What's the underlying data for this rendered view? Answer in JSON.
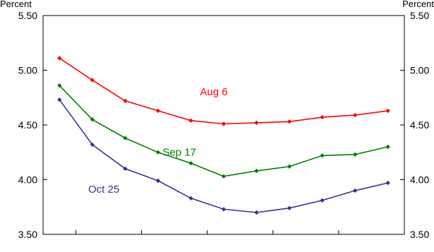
{
  "chart_data": {
    "type": "line",
    "y_unit_left": "Percent",
    "y_unit_right": "Percent",
    "ylim": [
      3.5,
      5.5
    ],
    "y_ticks": [
      "3.50",
      "4.00",
      "4.50",
      "5.00",
      "5.50"
    ],
    "x": [
      1,
      2,
      3,
      4,
      5,
      6,
      7,
      8,
      9,
      10,
      11
    ],
    "x_tick_positions": [
      1.5,
      3.5,
      5.5,
      7.5,
      9.5
    ],
    "grid": false,
    "series": [
      {
        "name": "Aug 6",
        "color": "#ff0000",
        "values": [
          5.11,
          4.91,
          4.72,
          4.63,
          4.54,
          4.51,
          4.52,
          4.53,
          4.57,
          4.59,
          4.63
        ],
        "label_at": [
          5.7,
          4.77
        ]
      },
      {
        "name": "Sep 17",
        "color": "#008000",
        "values": [
          4.86,
          4.55,
          4.38,
          4.25,
          4.15,
          4.03,
          4.08,
          4.12,
          4.22,
          4.23,
          4.3
        ],
        "label_at": [
          4.65,
          4.22
        ]
      },
      {
        "name": "Oct 25",
        "color": "#333399",
        "values": [
          4.73,
          4.32,
          4.1,
          3.99,
          3.83,
          3.73,
          3.7,
          3.74,
          3.81,
          3.9,
          3.97
        ],
        "label_at": [
          2.35,
          3.88
        ]
      }
    ]
  }
}
